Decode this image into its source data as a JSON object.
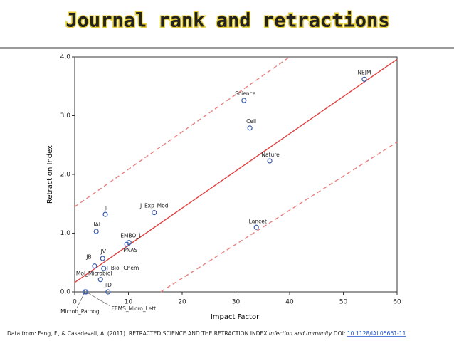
{
  "title": "Journal rank and retractions",
  "chart_data": {
    "type": "scatter",
    "x_label": "Impact Factor",
    "y_label": "Retraction Index",
    "xlim": [
      0,
      60
    ],
    "xticks": [
      0,
      10,
      20,
      30,
      40,
      50,
      60
    ],
    "ylim": [
      0,
      4
    ],
    "yticks": [
      {
        "value": 0,
        "label": "0.0"
      },
      {
        "value": 1,
        "label": "1.0"
      },
      {
        "value": 2,
        "label": "2.0"
      },
      {
        "value": 3,
        "label": "3.0"
      },
      {
        "value": 4,
        "label": "4.0"
      }
    ],
    "color": "#3b5bab",
    "labels": [
      "NEJM",
      "Science",
      "Cell",
      "Nature",
      "Lancet",
      "J_Exp_Med",
      "JI",
      "IAI",
      "EMBO_J",
      "PNAS",
      "JV",
      "JB",
      "J_Biol_Chem",
      "Mol_Microbiol",
      "JID",
      "Microb_Pathog",
      "FEMS_Micro_Lett"
    ],
    "x": [
      53.9,
      31.5,
      32.6,
      36.3,
      33.8,
      14.8,
      5.7,
      4.0,
      10.1,
      9.7,
      5.2,
      3.7,
      5.4,
      4.8,
      6.2,
      1.9,
      2.1
    ],
    "y": [
      3.62,
      3.26,
      2.79,
      2.23,
      1.1,
      1.35,
      1.32,
      1.03,
      0.84,
      0.81,
      0.57,
      0.44,
      0.4,
      0.21,
      0.0,
      0.0,
      0.0
    ],
    "lines": [
      {
        "x": [
          0,
          60
        ],
        "y": [
          0.16,
          3.96
        ],
        "style": "solid",
        "color": "#e04040"
      },
      {
        "x": [
          0,
          40
        ],
        "y": [
          1.45,
          4.0
        ],
        "style": "dashed",
        "color": "#e88080"
      },
      {
        "x": [
          16,
          60
        ],
        "y": [
          0,
          2.55
        ],
        "style": "dashed",
        "color": "#e88080"
      }
    ]
  },
  "footer": {
    "prefix": "Data from: Fang, F., & Casadevall, A. (2011). RETRACTED SCIENCE AND THE RETRACTION INDEX ",
    "journal": "Infection and Immunity",
    "doi_label": " DOI: ",
    "doi": "10.1128/IAI.05661-11"
  }
}
